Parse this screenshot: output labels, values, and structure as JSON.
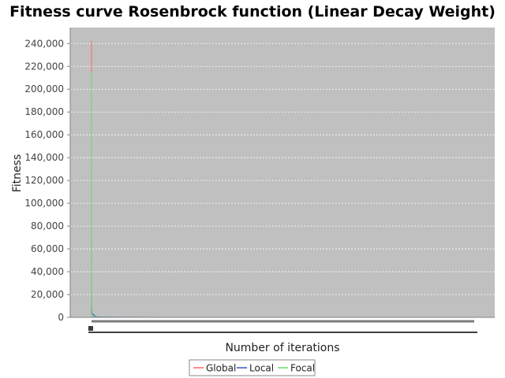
{
  "chart_data": {
    "type": "line",
    "title": "Fitness curve Rosenbrock function (Linear Decay Weight)",
    "xlabel": "Number of iterations",
    "ylabel": "Fitness",
    "ylim": [
      0,
      254000
    ],
    "xlim": [
      0,
      1000
    ],
    "yticks": [
      0,
      20000,
      40000,
      60000,
      80000,
      100000,
      120000,
      140000,
      160000,
      180000,
      200000,
      220000,
      240000
    ],
    "ytick_labels": [
      "0",
      "20,000",
      "40,000",
      "60,000",
      "80,000",
      "100,000",
      "120,000",
      "140,000",
      "160,000",
      "180,000",
      "200,000",
      "220,000",
      "240,000"
    ],
    "grid": true,
    "legend_position": "bottom",
    "plot_background": "#c0c0c0",
    "series": [
      {
        "name": "Global",
        "color": "#ff6666",
        "x": [
          0,
          1,
          2,
          3,
          4,
          5,
          6,
          8,
          10,
          12,
          15,
          20,
          25,
          30,
          40,
          50,
          80,
          120,
          200,
          400,
          1000
        ],
        "y": [
          242000,
          150000,
          60000,
          35000,
          18000,
          12000,
          8000,
          4000,
          2500,
          1500,
          1000,
          600,
          400,
          300,
          200,
          150,
          100,
          60,
          30,
          10,
          0
        ]
      },
      {
        "name": "Local",
        "color": "#3355cc",
        "x": [
          0,
          1,
          2,
          4,
          6,
          8,
          10,
          12,
          14,
          18,
          22,
          26,
          30,
          34,
          38,
          42,
          50,
          60,
          80,
          120,
          200,
          400,
          1000
        ],
        "y": [
          200000,
          120000,
          40000,
          15000,
          7000,
          5500,
          5000,
          5000,
          3500,
          3500,
          3000,
          3000,
          3000,
          2500,
          2500,
          2000,
          1000,
          600,
          300,
          150,
          60,
          20,
          0
        ]
      },
      {
        "name": "Focal",
        "color": "#66dd66",
        "x": [
          0,
          1,
          2,
          3,
          4,
          6,
          8,
          10,
          15,
          20,
          30,
          40,
          60,
          80,
          120,
          200,
          400,
          1000
        ],
        "y": [
          215000,
          106000,
          50000,
          25000,
          12000,
          6000,
          3500,
          2500,
          1500,
          1000,
          600,
          400,
          250,
          150,
          80,
          30,
          10,
          0
        ]
      }
    ]
  }
}
